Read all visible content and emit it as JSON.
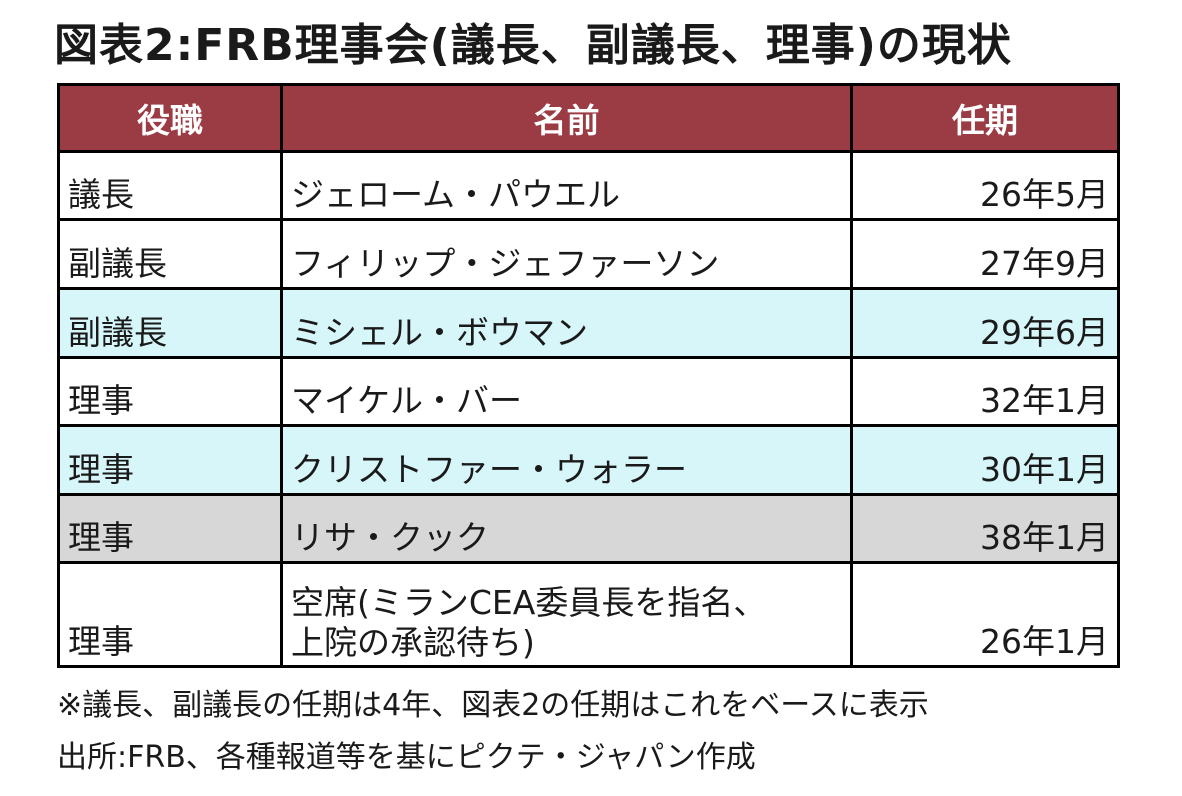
{
  "title": "図表2:FRB理事会(議長、副議長、理事)の現状",
  "table": {
    "headers": [
      "役職",
      "名前",
      "任期"
    ],
    "rows": [
      {
        "role": "議長",
        "name": "ジェローム・パウエル",
        "term": "26年5月",
        "highlight": "none"
      },
      {
        "role": "副議長",
        "name": "フィリップ・ジェファーソン",
        "term": "27年9月",
        "highlight": "none"
      },
      {
        "role": "副議長",
        "name": "ミシェル・ボウマン",
        "term": "29年6月",
        "highlight": "cyan"
      },
      {
        "role": "理事",
        "name": "マイケル・バー",
        "term": "32年1月",
        "highlight": "none"
      },
      {
        "role": "理事",
        "name": "クリストファー・ウォラー",
        "term": "30年1月",
        "highlight": "cyan"
      },
      {
        "role": "理事",
        "name": "リサ・クック",
        "term": "38年1月",
        "highlight": "gray"
      },
      {
        "role": "理事",
        "name_line1": "空席(ミランCEA委員長を指名、",
        "name_line2": "上院の承認待ち)",
        "term": "26年1月",
        "highlight": "none"
      }
    ]
  },
  "notes": {
    "note1": "※議長、副議長の任期は4年、図表2の任期はこれをベースに表示",
    "source": "出所:FRB、各種報道等を基にピクテ・ジャパン作成"
  },
  "colors": {
    "header_bg": "#9b3b44",
    "highlight_cyan": "#d7f6f9",
    "highlight_gray": "#d7d7d7"
  }
}
